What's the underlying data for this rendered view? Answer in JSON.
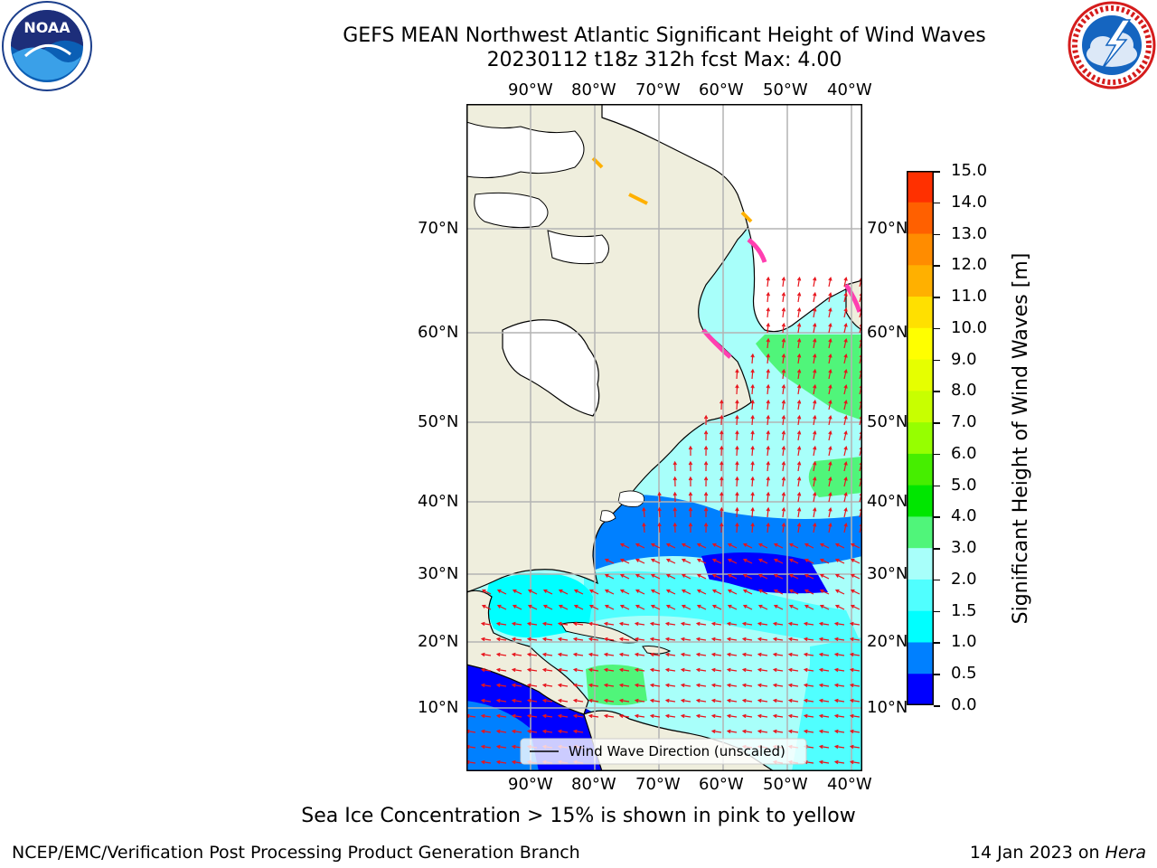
{
  "title": {
    "line1": "GEFS MEAN Northwest Atlantic Significant Height of Wind Waves",
    "line2": "20230112 t18z 312h fcst   Max: 4.00"
  },
  "map": {
    "lon_labels_top": [
      "90°W",
      "80°W",
      "70°W",
      "60°W",
      "50°W",
      "40°W"
    ],
    "lon_labels_bottom": [
      "90°W",
      "80°W",
      "70°W",
      "60°W",
      "50°W",
      "40°W"
    ],
    "lat_labels_left": [
      "70°N",
      "60°N",
      "50°N",
      "40°N",
      "30°N",
      "20°N",
      "10°N"
    ],
    "lat_labels_right": [
      "70°N",
      "60°N",
      "50°N",
      "40°N",
      "30°N",
      "20°N",
      "10°N"
    ],
    "legend": "Wind Wave Direction (unscaled)",
    "colors": {
      "land": "#efeedd",
      "ice_free_white": "#ffffff",
      "arrow": "#e8141c",
      "grid": "#b3b3b3"
    }
  },
  "colorbar": {
    "label": "Significant Height of Wind Waves [m]",
    "ticks": [
      "15.0",
      "14.0",
      "13.0",
      "12.0",
      "11.0",
      "10.0",
      "9.0",
      "8.0",
      "7.0",
      "6.0",
      "5.0",
      "4.0",
      "3.0",
      "2.0",
      "1.5",
      "1.0",
      "0.5",
      "0.0"
    ],
    "colors": [
      "#ff0000",
      "#ff3000",
      "#ff6000",
      "#ff8c00",
      "#ffb000",
      "#ffe000",
      "#ffff00",
      "#e6ff00",
      "#c8ff00",
      "#96ff00",
      "#46ee00",
      "#00e600",
      "#50f57a",
      "#a8fffa",
      "#50ffff",
      "#00ffff",
      "#0080ff",
      "#0000ff"
    ]
  },
  "caption": "Sea Ice Concentration > 15% is shown in pink to yellow",
  "footer": {
    "left": "NCEP/EMC/Verification Post Processing Product Generation Branch",
    "right_prefix": "14 Jan 2023 on ",
    "right_host": "Hera"
  }
}
